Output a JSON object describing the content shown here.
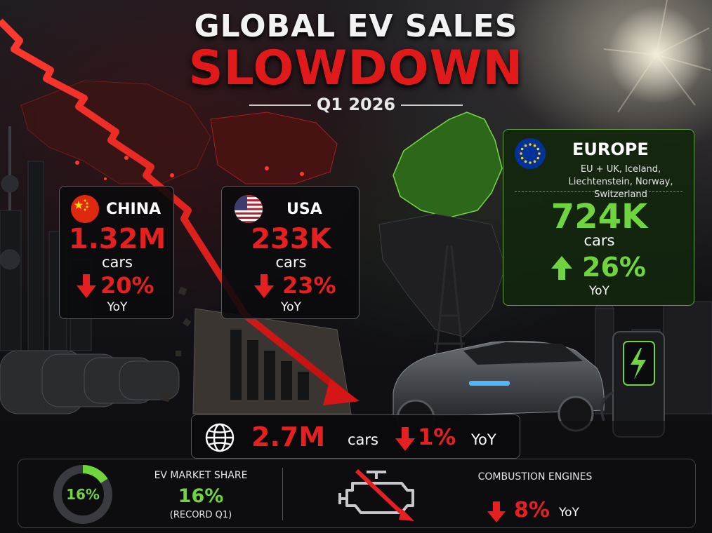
{
  "header": {
    "title_line1": "GLOBAL EV SALES",
    "title_line2": "SLOWDOWN",
    "period": "Q1 2026"
  },
  "regions": {
    "china": {
      "name": "CHINA",
      "value": "1.32M",
      "unit": "cars",
      "change": "20%",
      "direction": "down",
      "change_label": "YoY",
      "flag": "china-flag"
    },
    "usa": {
      "name": "USA",
      "value": "233K",
      "unit": "cars",
      "change": "23%",
      "direction": "down",
      "change_label": "YoY",
      "flag": "usa-flag"
    },
    "europe": {
      "name": "EUROPE",
      "description": "EU + UK, Iceland, Liechtenstein, Norway, Switzerland",
      "value": "724K",
      "unit": "cars",
      "change": "26%",
      "direction": "up",
      "change_label": "YoY",
      "flag": "eu-flag"
    }
  },
  "global_total": {
    "value": "2.7M",
    "unit": "cars",
    "change": "1%",
    "direction": "down",
    "change_label": "YoY",
    "icon": "globe-icon"
  },
  "market_share": {
    "donut_label": "16%",
    "share_fraction": 0.16,
    "title": "EV MARKET SHARE",
    "value": "16%",
    "note": "(RECORD Q1)"
  },
  "combustion": {
    "title": "COMBUSTION ENGINES",
    "change": "8%",
    "direction": "down",
    "change_label": "YoY",
    "icon": "engine-icon"
  },
  "colors": {
    "negative": "#e62020",
    "positive": "#6fd43d",
    "europe_panel": "#12260e",
    "card_border": "#5a5a60"
  }
}
